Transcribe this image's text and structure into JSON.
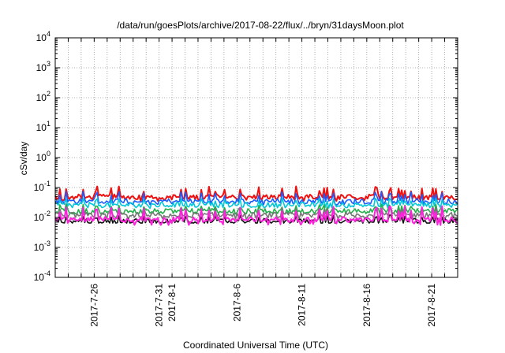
{
  "chart_data": {
    "type": "line",
    "title": "/data/run/goesPlots/archive/2017-08-22/flux/../bryn/31daysMoon.plot",
    "xlabel": "Coordinated Universal Time (UTC)",
    "ylabel": "cSv/day",
    "yscale": "log",
    "ylim": [
      0.0001,
      10000
    ],
    "xlim": [
      "2017-07-23",
      "2017-08-23"
    ],
    "grid": true,
    "y_ticks": [
      {
        "base": "10",
        "exp": "-4"
      },
      {
        "base": "10",
        "exp": "-3"
      },
      {
        "base": "10",
        "exp": "-2"
      },
      {
        "base": "10",
        "exp": "-1"
      },
      {
        "base": "10",
        "exp": "0"
      },
      {
        "base": "10",
        "exp": "1"
      },
      {
        "base": "10",
        "exp": "2"
      },
      {
        "base": "10",
        "exp": "3"
      },
      {
        "base": "10",
        "exp": "4"
      }
    ],
    "x_ticks": [
      "2017-7-26",
      "2017-7-31",
      "2017-8-1",
      "2017-8-6",
      "2017-8-11",
      "2017-8-16",
      "2017-8-21"
    ],
    "series": [
      {
        "color": "#ee1111",
        "base": 0.048,
        "peak": 0.11,
        "low": 0.035
      },
      {
        "color": "#1a5cff",
        "base": 0.035,
        "peak": 0.075,
        "low": 0.026
      },
      {
        "color": "#00c8d8",
        "base": 0.026,
        "peak": 0.045,
        "low": 0.02
      },
      {
        "color": "#22b04a",
        "base": 0.016,
        "peak": 0.028,
        "low": 0.013
      },
      {
        "color": "#777777",
        "base": 0.012,
        "peak": 0.022,
        "low": 0.0085
      },
      {
        "color": "#111111",
        "base": 0.0075,
        "peak": 0.012,
        "low": 0.0065
      },
      {
        "color": "#ff22dd",
        "base": 0.0085,
        "peak": 0.024,
        "low": 0.0055
      }
    ]
  }
}
